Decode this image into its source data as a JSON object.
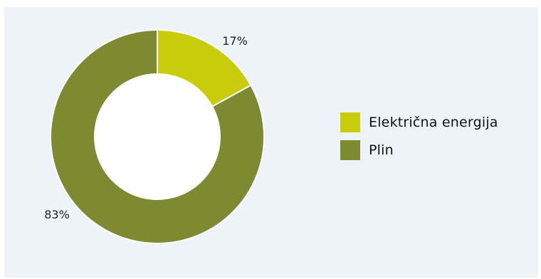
{
  "chart_data": {
    "type": "pie",
    "donut": true,
    "start_angle_deg": 0,
    "direction": "clockwise",
    "categories": [
      "Električna energija",
      "Plin"
    ],
    "values": [
      17,
      83
    ],
    "data_labels": [
      "17%",
      "83%"
    ],
    "colors": [
      "#c9cc0a",
      "#7e8a31"
    ],
    "legend_position": "right"
  }
}
